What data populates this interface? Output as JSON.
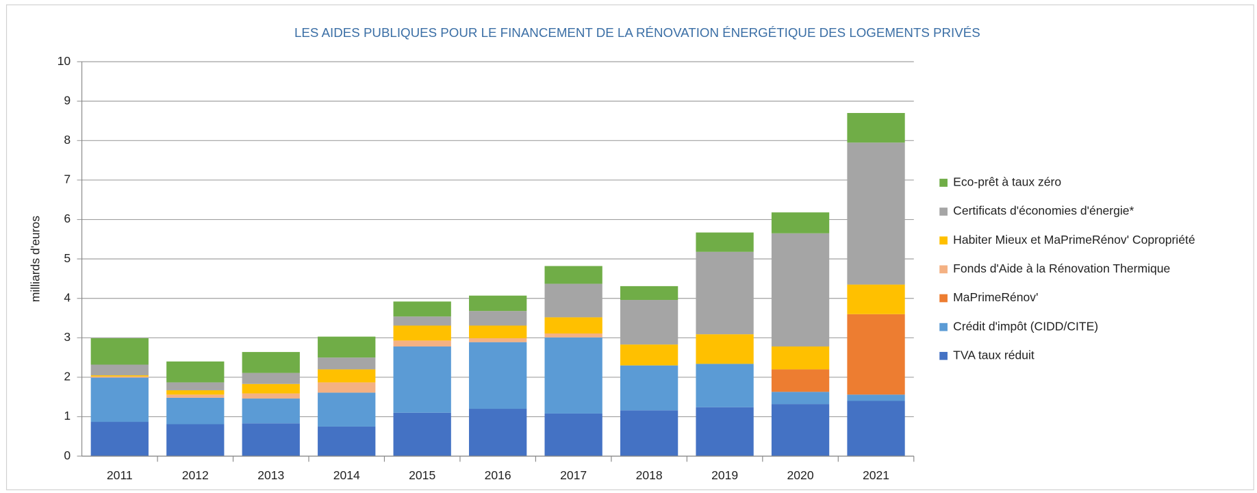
{
  "chart_data": {
    "type": "stacked_bar",
    "title": "LES AIDES PUBLIQUES POUR LE FINANCEMENT DE LA RÉNOVATION ÉNERGÉTIQUE DES LOGEMENTS PRIVÉS",
    "y_label": "milliards d'euros",
    "categories": [
      "2011",
      "2012",
      "2013",
      "2014",
      "2015",
      "2016",
      "2017",
      "2018",
      "2019",
      "2020",
      "2021"
    ],
    "series": [
      {
        "name": "TVA taux réduit",
        "color": "#4472c4",
        "values": [
          0.87,
          0.81,
          0.83,
          0.75,
          1.1,
          1.2,
          1.08,
          1.16,
          1.24,
          1.32,
          1.4
        ]
      },
      {
        "name": "Crédit d'impôt (CIDD/CITE)",
        "color": "#5b9bd5",
        "values": [
          1.12,
          0.67,
          0.63,
          0.86,
          1.68,
          1.69,
          1.93,
          1.14,
          1.1,
          0.31,
          0.16
        ]
      },
      {
        "name": "MaPrimeRénov'",
        "color": "#ed7d31",
        "values": [
          0,
          0,
          0,
          0,
          0,
          0,
          0,
          0,
          0,
          0.57,
          2.04
        ]
      },
      {
        "name": "Fonds d'Aide à la Rénovation Thermique",
        "color": "#f4b183",
        "values": [
          0.03,
          0.08,
          0.13,
          0.26,
          0.15,
          0.1,
          0.1,
          0,
          0,
          0,
          0
        ]
      },
      {
        "name": "Habiter Mieux et MaPrimeRénov' Copropriété",
        "color": "#ffc000",
        "values": [
          0.03,
          0.11,
          0.24,
          0.33,
          0.38,
          0.32,
          0.41,
          0.53,
          0.75,
          0.58,
          0.75
        ]
      },
      {
        "name": "Certificats d'économies d'énergie*",
        "color": "#a5a5a5",
        "values": [
          0.27,
          0.2,
          0.28,
          0.3,
          0.23,
          0.37,
          0.85,
          1.13,
          2.09,
          2.87,
          3.6
        ]
      },
      {
        "name": "Eco-prêt à taux zéro",
        "color": "#70ad47",
        "values": [
          0.67,
          0.53,
          0.53,
          0.53,
          0.38,
          0.39,
          0.45,
          0.35,
          0.49,
          0.53,
          0.75
        ]
      }
    ],
    "ylim": [
      0,
      10
    ],
    "yticks": [
      0,
      1,
      2,
      3,
      4,
      5,
      6,
      7,
      8,
      9,
      10
    ],
    "grid": true,
    "legend": "right"
  }
}
